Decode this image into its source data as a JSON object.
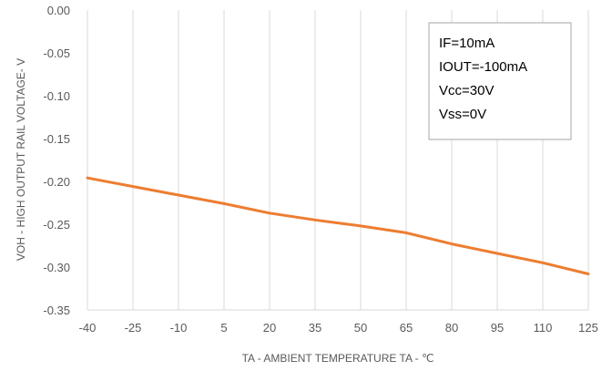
{
  "chart_data": {
    "type": "line",
    "title": "",
    "xlabel": "TA - AMBIENT TEMPERATURE TA - ℃",
    "ylabel": "VOH - HIGH OUTPUT RAIL VOLTAGE- V",
    "x_ticks": [
      "-40",
      "-25",
      "-10",
      "5",
      "20",
      "35",
      "50",
      "65",
      "80",
      "95",
      "110",
      "125"
    ],
    "y_ticks": [
      "0.00",
      "-0.05",
      "-0.10",
      "-0.15",
      "-0.20",
      "-0.25",
      "-0.30",
      "-0.35"
    ],
    "xlim": [
      -40,
      125
    ],
    "ylim": [
      -0.35,
      0.0
    ],
    "grid": "vertical",
    "series": [
      {
        "color": "#ED7D31",
        "x": [
          -40,
          -25,
          -10,
          5,
          20,
          35,
          50,
          65,
          80,
          95,
          110,
          125
        ],
        "y": [
          -0.196,
          -0.206,
          -0.216,
          -0.226,
          -0.237,
          -0.245,
          -0.252,
          -0.26,
          -0.273,
          -0.284,
          -0.295,
          -0.308
        ]
      }
    ],
    "annotation_box": {
      "lines": [
        "IF=10mA",
        "IOUT=-100mA",
        "Vcc=30V",
        "Vss=0V"
      ]
    }
  }
}
